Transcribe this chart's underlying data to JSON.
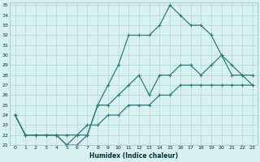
{
  "xlabel": "Humidex (Indice chaleur)",
  "ylabel": "",
  "x": [
    0,
    1,
    2,
    3,
    4,
    5,
    6,
    7,
    8,
    9,
    10,
    11,
    12,
    13,
    14,
    15,
    16,
    17,
    18,
    19,
    20,
    21,
    22,
    23
  ],
  "line_bottom": [
    24,
    22,
    22,
    22,
    22,
    22,
    22,
    23,
    23,
    24,
    24,
    25,
    25,
    25,
    26,
    26,
    27,
    27,
    27,
    27,
    27,
    27,
    27,
    27
  ],
  "line_mid": [
    24,
    22,
    22,
    22,
    22,
    21,
    21,
    22,
    25,
    25,
    26,
    27,
    28,
    26,
    28,
    28,
    29,
    29,
    28,
    29,
    30,
    28,
    28,
    28
  ],
  "line_top": [
    24,
    22,
    22,
    22,
    22,
    21,
    22,
    22,
    25,
    27,
    29,
    32,
    32,
    32,
    33,
    35,
    34,
    33,
    33,
    32,
    30,
    29,
    28,
    27
  ],
  "line_color": "#2d7d7d",
  "bg_color": "#d8f0f0",
  "grid_color": "#b0d8d8",
  "ylim": [
    21,
    35
  ],
  "xlim": [
    0,
    23
  ],
  "yticks": [
    21,
    22,
    23,
    24,
    25,
    26,
    27,
    28,
    29,
    30,
    31,
    32,
    33,
    34,
    35
  ],
  "xticks": [
    0,
    1,
    2,
    3,
    4,
    5,
    6,
    7,
    8,
    9,
    10,
    11,
    12,
    13,
    14,
    15,
    16,
    17,
    18,
    19,
    20,
    21,
    22,
    23
  ]
}
